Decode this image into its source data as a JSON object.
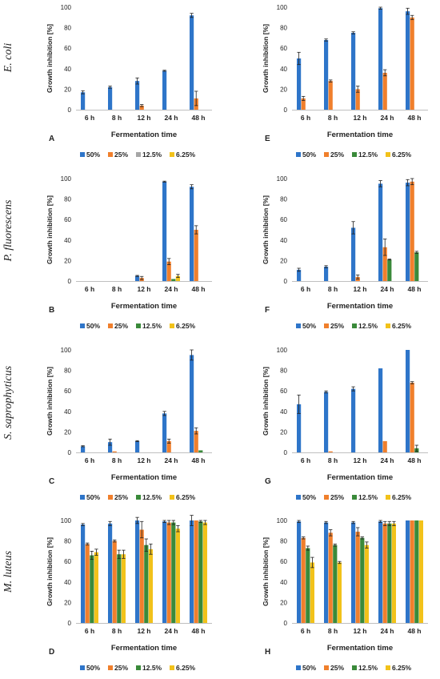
{
  "figure": {
    "series_colors": [
      "#2E75C9",
      "#F07F2C",
      "#3A8A3A",
      "#F2C21A"
    ],
    "gray_color": "#A6A6A6",
    "organisms": [
      "E. coli",
      "P. fluorescens",
      "S. saprophyticus",
      "M. luteus"
    ]
  },
  "chart_data": [
    {
      "letter": "A",
      "type": "bar",
      "organism": "E. coli",
      "xlabel": "Fermentation time",
      "ylabel": "Growth inhibition [%]",
      "categories": [
        "6 h",
        "8 h",
        "12 h",
        "24 h",
        "48 h"
      ],
      "ylim": [
        0,
        100
      ],
      "yticks": [
        0,
        20,
        40,
        60,
        80,
        100
      ],
      "legend": [
        "50%",
        "25%",
        "12.5%",
        "6.25%"
      ],
      "legend_colors": [
        "#2E75C9",
        "#F07F2C",
        "#A6A6A6",
        "#F2C21A"
      ],
      "series": [
        {
          "name": "50%",
          "values": [
            17,
            22,
            28,
            38,
            92
          ],
          "errors": [
            1.5,
            1,
            3,
            0.5,
            2
          ]
        },
        {
          "name": "25%",
          "values": [
            0,
            0,
            4,
            0,
            11
          ],
          "errors": [
            0,
            0,
            1,
            0,
            7
          ]
        },
        {
          "name": "12.5%",
          "values": [
            0,
            0,
            0,
            0,
            0
          ],
          "errors": [
            0,
            0,
            0,
            0,
            0
          ]
        },
        {
          "name": "6.25%",
          "values": [
            0,
            0,
            0,
            0,
            0
          ],
          "errors": [
            0,
            0,
            0,
            0,
            0
          ]
        }
      ]
    },
    {
      "letter": "E",
      "type": "bar",
      "organism": "E. coli",
      "xlabel": "Fermentation time",
      "ylabel": "Growth inhibition [%]",
      "categories": [
        "6 h",
        "8 h",
        "12 h",
        "24 h",
        "48 h"
      ],
      "ylim": [
        0,
        100
      ],
      "yticks": [
        0,
        20,
        40,
        60,
        80,
        100
      ],
      "legend": [
        "50%",
        "25%",
        "12.5%",
        "6.25%"
      ],
      "legend_colors": [
        "#2E75C9",
        "#F07F2C",
        "#3A8A3A",
        "#F2C21A"
      ],
      "series": [
        {
          "name": "50%",
          "values": [
            50,
            68,
            75,
            99,
            96
          ],
          "errors": [
            6,
            1,
            1,
            1,
            3
          ]
        },
        {
          "name": "25%",
          "values": [
            11,
            28,
            20,
            36,
            90
          ],
          "errors": [
            2,
            1,
            3,
            3,
            2
          ]
        },
        {
          "name": "12.5%",
          "values": [
            0,
            0,
            0,
            0,
            0
          ],
          "errors": [
            0,
            0,
            0,
            0,
            0
          ]
        },
        {
          "name": "6.25%",
          "values": [
            0,
            0,
            0,
            0,
            0
          ],
          "errors": [
            0,
            0,
            0,
            0,
            0
          ]
        }
      ]
    },
    {
      "letter": "B",
      "type": "bar",
      "organism": "P. fluorescens",
      "xlabel": "Fermentation time",
      "ylabel": "Growth inhibition [%]",
      "categories": [
        "6 h",
        "8 h",
        "12 h",
        "24 h",
        "48 h"
      ],
      "ylim": [
        0,
        100
      ],
      "yticks": [
        0,
        20,
        40,
        60,
        80,
        100
      ],
      "legend": [
        "50%",
        "25%",
        "12.5%",
        "6.25%"
      ],
      "legend_colors": [
        "#2E75C9",
        "#F07F2C",
        "#3A8A3A",
        "#F2C21A"
      ],
      "series": [
        {
          "name": "50%",
          "values": [
            0,
            0,
            5,
            97,
            92
          ],
          "errors": [
            0,
            0,
            0.5,
            0.5,
            2
          ]
        },
        {
          "name": "25%",
          "values": [
            0,
            0,
            3,
            19,
            50
          ],
          "errors": [
            0,
            0,
            1.5,
            3,
            4
          ]
        },
        {
          "name": "12.5%",
          "values": [
            0,
            0,
            0,
            2,
            0
          ],
          "errors": [
            0,
            0,
            0,
            0,
            0
          ]
        },
        {
          "name": "6.25%",
          "values": [
            0,
            0,
            0,
            5,
            0
          ],
          "errors": [
            0,
            0,
            0,
            1.5,
            0
          ]
        }
      ]
    },
    {
      "letter": "F",
      "type": "bar",
      "organism": "P. fluorescens",
      "xlabel": "Fermentation time",
      "ylabel": "Growth inhibition [%]",
      "categories": [
        "6 h",
        "8 h",
        "12 h",
        "24 h",
        "48 h"
      ],
      "ylim": [
        0,
        100
      ],
      "yticks": [
        0,
        20,
        40,
        60,
        80,
        100
      ],
      "legend": [
        "50%",
        "25%",
        "12.5%",
        "6.25%"
      ],
      "legend_colors": [
        "#2E75C9",
        "#F07F2C",
        "#3A8A3A",
        "#F2C21A"
      ],
      "series": [
        {
          "name": "50%",
          "values": [
            11,
            14,
            52,
            95,
            96
          ],
          "errors": [
            1.5,
            1,
            6,
            3,
            3
          ]
        },
        {
          "name": "25%",
          "values": [
            0,
            0,
            4,
            33,
            97
          ],
          "errors": [
            0,
            0,
            2,
            8,
            3
          ]
        },
        {
          "name": "12.5%",
          "values": [
            0,
            0,
            0,
            21,
            28
          ],
          "errors": [
            0,
            0,
            0,
            0.5,
            1
          ]
        },
        {
          "name": "6.25%",
          "values": [
            0,
            0,
            0,
            0,
            0
          ],
          "errors": [
            0,
            0,
            0,
            0,
            0
          ]
        }
      ]
    },
    {
      "letter": "C",
      "type": "bar",
      "organism": "S. saprophyticus",
      "xlabel": "Fermentation time",
      "ylabel": "Growth inhibition [%]",
      "categories": [
        "6 h",
        "8 h",
        "12 h",
        "24 h",
        "48 h"
      ],
      "ylim": [
        0,
        100
      ],
      "yticks": [
        0,
        20,
        40,
        60,
        80,
        100
      ],
      "legend": [
        "50%",
        "25%",
        "12.5%",
        "6.25%"
      ],
      "legend_colors": [
        "#2E75C9",
        "#F07F2C",
        "#3A8A3A",
        "#F2C21A"
      ],
      "series": [
        {
          "name": "50%",
          "values": [
            6,
            10,
            11,
            38,
            95
          ],
          "errors": [
            0.5,
            3,
            0.5,
            2,
            5
          ]
        },
        {
          "name": "25%",
          "values": [
            0,
            1,
            0,
            11,
            21
          ],
          "errors": [
            0,
            0,
            0,
            2,
            3
          ]
        },
        {
          "name": "12.5%",
          "values": [
            0,
            0,
            0,
            0,
            2
          ],
          "errors": [
            0,
            0,
            0,
            0,
            0
          ]
        },
        {
          "name": "6.25%",
          "values": [
            0,
            0,
            0,
            0,
            0
          ],
          "errors": [
            0,
            0,
            0,
            0,
            0
          ]
        }
      ]
    },
    {
      "letter": "G",
      "type": "bar",
      "organism": "S. saprophyticus",
      "xlabel": "Fermentation time",
      "ylabel": "Growth inhibition [%]",
      "categories": [
        "6 h",
        "8 h",
        "12 h",
        "24 h",
        "48 h"
      ],
      "ylim": [
        0,
        100
      ],
      "yticks": [
        0,
        20,
        40,
        60,
        80,
        100
      ],
      "legend": [
        "50%",
        "25%",
        "12.5%",
        "6.25%"
      ],
      "legend_colors": [
        "#2E75C9",
        "#F07F2C",
        "#3A8A3A",
        "#F2C21A"
      ],
      "series": [
        {
          "name": "50%",
          "values": [
            47,
            59,
            62,
            82,
            100
          ],
          "errors": [
            9,
            1,
            2,
            0,
            0
          ]
        },
        {
          "name": "25%",
          "values": [
            0,
            1,
            0,
            11,
            68
          ],
          "errors": [
            0,
            0,
            0,
            0,
            1
          ]
        },
        {
          "name": "12.5%",
          "values": [
            0,
            0,
            0,
            0,
            4
          ],
          "errors": [
            0,
            0,
            0,
            0,
            3
          ]
        },
        {
          "name": "6.25%",
          "values": [
            0,
            0,
            0,
            0,
            0
          ],
          "errors": [
            0,
            0,
            0,
            0,
            0
          ]
        }
      ]
    },
    {
      "letter": "D",
      "type": "bar",
      "organism": "M. luteus",
      "xlabel": "Fermentation time",
      "ylabel": "Growth inhibition [%]",
      "categories": [
        "6 h",
        "8 h",
        "12 h",
        "24 h",
        "48 h"
      ],
      "ylim": [
        0,
        100
      ],
      "yticks": [
        0,
        20,
        40,
        60,
        80,
        100
      ],
      "legend": [
        "50%",
        "25%",
        "12.5%",
        "6.25%"
      ],
      "legend_colors": [
        "#2E75C9",
        "#F07F2C",
        "#3A8A3A",
        "#F2C21A"
      ],
      "series": [
        {
          "name": "50%",
          "values": [
            96,
            97,
            100,
            99,
            100
          ],
          "errors": [
            1,
            2,
            3,
            1,
            5
          ]
        },
        {
          "name": "25%",
          "values": [
            77,
            80,
            91,
            98,
            100
          ],
          "errors": [
            1,
            1,
            8,
            2,
            0
          ]
        },
        {
          "name": "12.5%",
          "values": [
            66,
            67,
            76,
            98,
            99
          ],
          "errors": [
            4,
            4,
            6,
            2,
            1
          ]
        },
        {
          "name": "6.25%",
          "values": [
            69,
            67,
            72,
            92,
            98
          ],
          "errors": [
            3,
            4,
            5,
            3,
            2
          ]
        }
      ]
    },
    {
      "letter": "H",
      "type": "bar",
      "organism": "M. luteus",
      "xlabel": "Fermentation time",
      "ylabel": "Growth inhibition [%]",
      "categories": [
        "6 h",
        "8 h",
        "12 h",
        "24 h",
        "48 h"
      ],
      "ylim": [
        0,
        100
      ],
      "yticks": [
        0,
        20,
        40,
        60,
        80,
        100
      ],
      "legend": [
        "50%",
        "25%",
        "12.5%",
        "6.25%"
      ],
      "legend_colors": [
        "#2E75C9",
        "#F07F2C",
        "#3A8A3A",
        "#F2C21A"
      ],
      "series": [
        {
          "name": "50%",
          "values": [
            99,
            98,
            98,
            99,
            100
          ],
          "errors": [
            1,
            1,
            1,
            1,
            0
          ]
        },
        {
          "name": "25%",
          "values": [
            83,
            88,
            89,
            97,
            100
          ],
          "errors": [
            1,
            3,
            4,
            2,
            0
          ]
        },
        {
          "name": "12.5%",
          "values": [
            73,
            76,
            83,
            97,
            100
          ],
          "errors": [
            2,
            1,
            1,
            2,
            0
          ]
        },
        {
          "name": "6.25%",
          "values": [
            59,
            59,
            76,
            97,
            100
          ],
          "errors": [
            5,
            1,
            3,
            2,
            0
          ]
        }
      ]
    }
  ]
}
